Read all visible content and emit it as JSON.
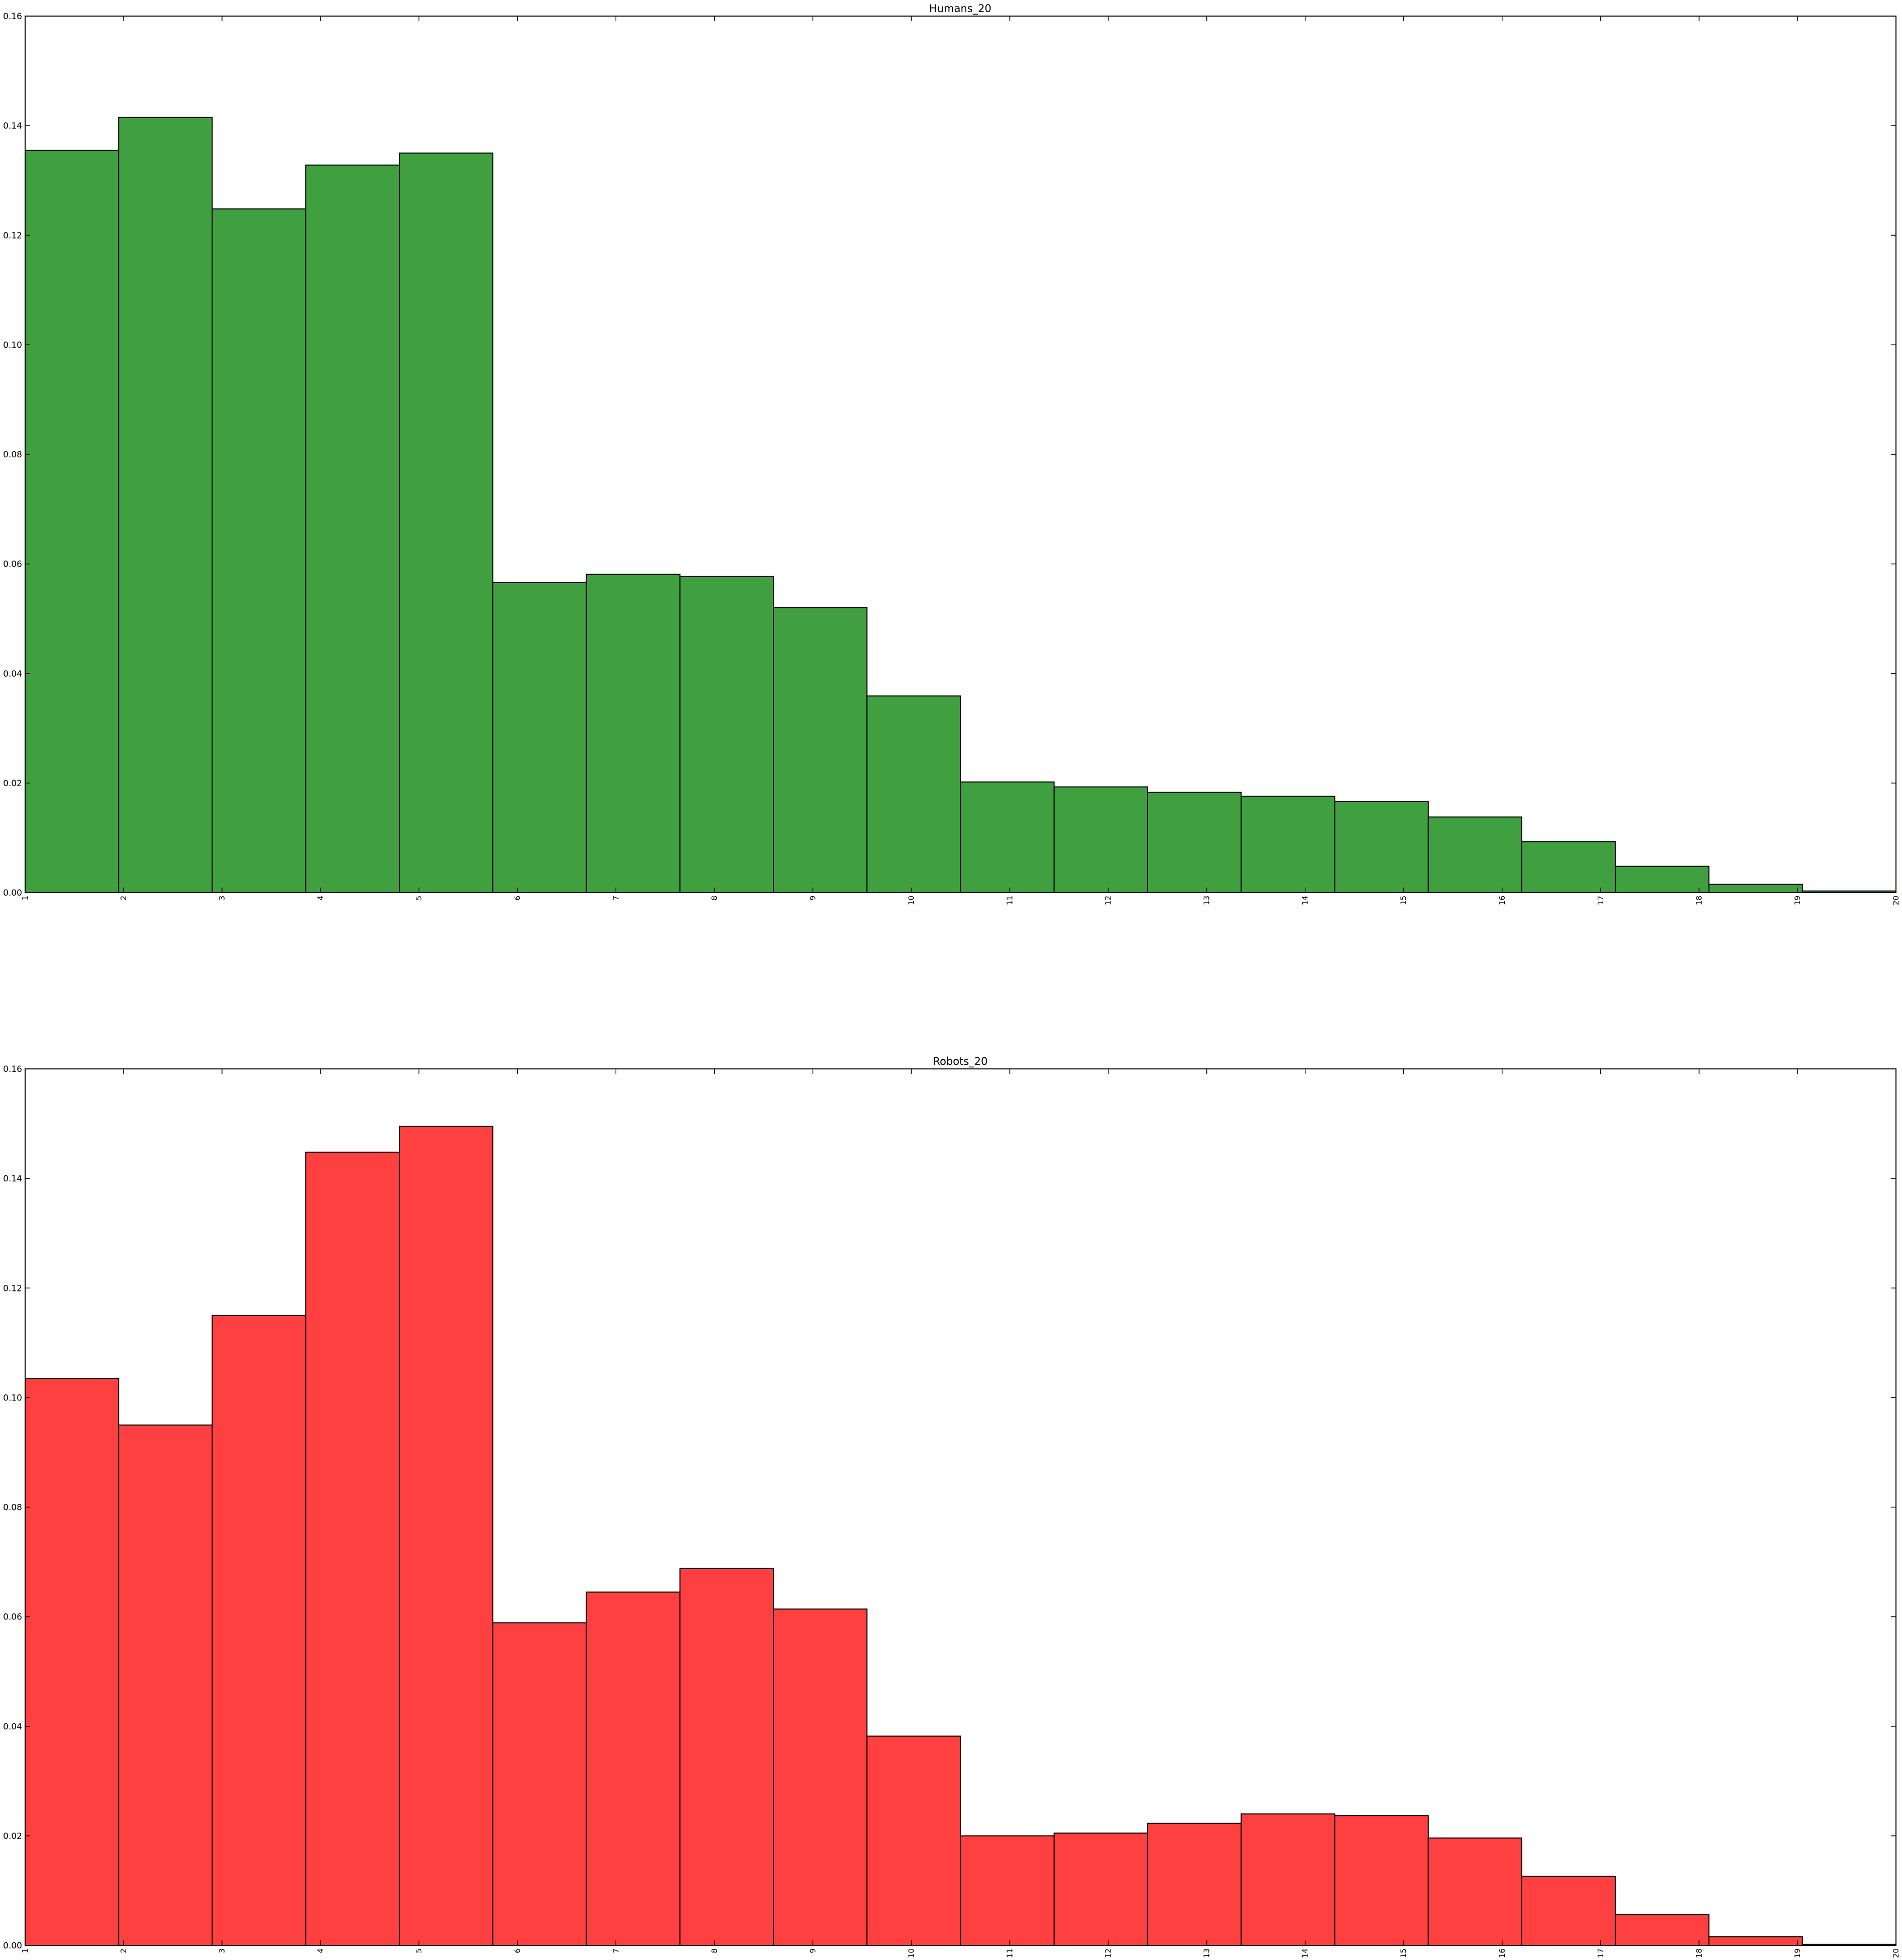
{
  "colors": {
    "green_bar": "#40a040",
    "red_bar": "#ff4040",
    "edge": "#000000",
    "background": "#ffffff"
  },
  "chart_data": [
    {
      "type": "bar",
      "title": "Humans_20",
      "xlabel": "",
      "ylabel": "",
      "xlim": [
        1,
        20
      ],
      "ylim": [
        0,
        0.16
      ],
      "grid": false,
      "color": "#40a040",
      "bin_edges": [
        1,
        1.95,
        2.9,
        3.85,
        4.8,
        5.75,
        6.7,
        7.65,
        8.6,
        9.55,
        10.5,
        11.45,
        12.4,
        13.35,
        14.3,
        15.25,
        16.2,
        17.15,
        18.1,
        19.05,
        20
      ],
      "values": [
        0.1355,
        0.1415,
        0.1248,
        0.1328,
        0.135,
        0.0566,
        0.0581,
        0.0577,
        0.052,
        0.0359,
        0.0202,
        0.0193,
        0.0183,
        0.0176,
        0.0166,
        0.0138,
        0.0093,
        0.0048,
        0.0015,
        0.0003
      ],
      "xticks": [
        "1",
        "2",
        "3",
        "4",
        "5",
        "6",
        "7",
        "8",
        "9",
        "10",
        "11",
        "12",
        "13",
        "14",
        "15",
        "16",
        "17",
        "18",
        "19",
        "20"
      ],
      "yticks": [
        "0.00",
        "0.02",
        "0.04",
        "0.06",
        "0.08",
        "0.10",
        "0.12",
        "0.14",
        "0.16"
      ]
    },
    {
      "type": "bar",
      "title": "Robots_20",
      "xlabel": "",
      "ylabel": "",
      "xlim": [
        1,
        20
      ],
      "ylim": [
        0,
        0.16
      ],
      "grid": false,
      "color": "#ff4040",
      "bin_edges": [
        1,
        1.95,
        2.9,
        3.85,
        4.8,
        5.75,
        6.7,
        7.65,
        8.6,
        9.55,
        10.5,
        11.45,
        12.4,
        13.35,
        14.3,
        15.25,
        16.2,
        17.15,
        18.1,
        19.05,
        20
      ],
      "values": [
        0.1035,
        0.095,
        0.115,
        0.1448,
        0.1495,
        0.0589,
        0.0645,
        0.0688,
        0.0614,
        0.0382,
        0.02,
        0.0205,
        0.0223,
        0.024,
        0.0237,
        0.0196,
        0.0126,
        0.0056,
        0.0016,
        0.0002
      ],
      "xticks": [
        "1",
        "2",
        "3",
        "4",
        "5",
        "6",
        "7",
        "8",
        "9",
        "10",
        "11",
        "12",
        "13",
        "14",
        "15",
        "16",
        "17",
        "18",
        "19",
        "20"
      ],
      "yticks": [
        "0.00",
        "0.02",
        "0.04",
        "0.06",
        "0.08",
        "0.10",
        "0.12",
        "0.14",
        "0.16"
      ]
    }
  ]
}
